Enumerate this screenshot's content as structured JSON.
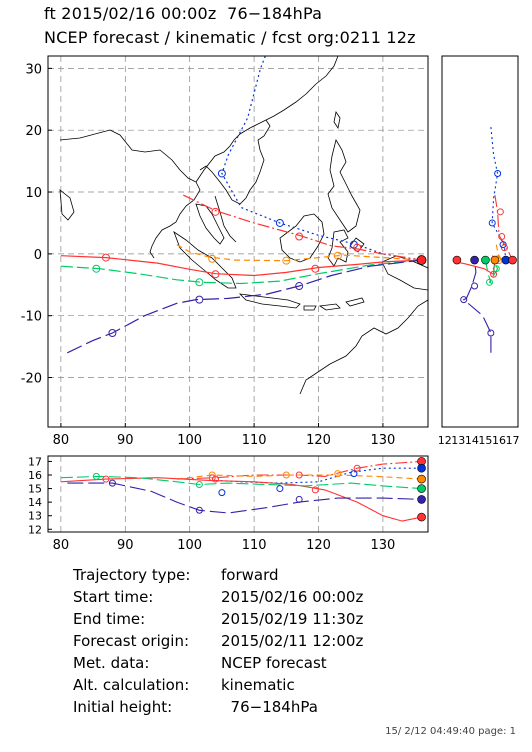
{
  "header": {
    "line1": "ft 2015/02/16 00:00z  76−184hPa",
    "line2": "NCEP forecast / kinematic / fcst org:0211 12z"
  },
  "info": [
    {
      "label": "Trajectory type:",
      "value": "forward"
    },
    {
      "label": "Start time:",
      "value": "2015/02/16 00:00z"
    },
    {
      "label": "End time:",
      "value": "2015/02/19 11:30z"
    },
    {
      "label": "Forecast origin:",
      "value": "2015/02/11 12:00z"
    },
    {
      "label": "Met. data:",
      "value": "NCEP forecast"
    },
    {
      "label": "Alt. calculation:",
      "value": "kinematic"
    },
    {
      "label": "Initial height:",
      "value": "  76−184hPa"
    }
  ],
  "footer": "15/ 2/12 04:49:40 page: 1",
  "chart_data": [
    {
      "type": "line",
      "panel": "map",
      "x_ticks": [
        "80",
        "90",
        "100",
        "110",
        "120",
        "130"
      ],
      "y_ticks": [
        "30",
        "20",
        "10",
        "0",
        "-10",
        "-20"
      ],
      "xlim": [
        78,
        137
      ],
      "ylim": [
        -28,
        32
      ],
      "grid": true,
      "series": [
        {
          "color": "#0033dd",
          "dash": "2,3",
          "points": [
            [
              114,
              38
            ],
            [
              111,
              30
            ],
            [
              109,
              22
            ],
            [
              106,
              16
            ],
            [
              105,
              13
            ],
            [
              108,
              7.5
            ],
            [
              114,
              5
            ],
            [
              120,
              3
            ],
            [
              126,
              1.5
            ],
            [
              130,
              0
            ],
            [
              136,
              -1
            ]
          ],
          "markers": [
            [
              105,
              13
            ],
            [
              114,
              5
            ],
            [
              125.5,
              1.5
            ]
          ]
        },
        {
          "color": "#ff3333",
          "dash": "12,3,2,3",
          "points": [
            [
              99,
              9.5
            ],
            [
              104,
              7
            ],
            [
              110,
              5
            ],
            [
              117,
              3
            ],
            [
              122,
              1.3
            ],
            [
              126,
              0.8
            ],
            [
              130,
              0
            ],
            [
              136,
              -1
            ]
          ],
          "markers": [
            [
              104,
              6.8
            ],
            [
              117,
              2.8
            ],
            [
              126,
              1
            ]
          ]
        },
        {
          "color": "#ff8800",
          "dash": "6,4",
          "points": [
            [
              98,
              1.5
            ],
            [
              100,
              0.3
            ],
            [
              103,
              -0.5
            ],
            [
              107,
              -1
            ],
            [
              115,
              -1.1
            ],
            [
              120,
              -0.6
            ],
            [
              124,
              -0.2
            ],
            [
              130,
              -0.6
            ],
            [
              136,
              -1
            ]
          ],
          "markers": [
            [
              103.5,
              -0.8
            ],
            [
              115,
              -1.1
            ],
            [
              123,
              -0.3
            ]
          ]
        },
        {
          "color": "#ff3333",
          "dash": "",
          "points": [
            [
              80,
              -0.3
            ],
            [
              87,
              -0.6
            ],
            [
              95,
              -1.5
            ],
            [
              100,
              -2.5
            ],
            [
              104,
              -3.2
            ],
            [
              110,
              -3.5
            ],
            [
              115,
              -3
            ],
            [
              120,
              -2.2
            ],
            [
              126,
              -1.7
            ],
            [
              130,
              -1.3
            ],
            [
              136,
              -1
            ]
          ],
          "markers": [
            [
              87,
              -0.6
            ],
            [
              104,
              -3.3
            ],
            [
              119.5,
              -2.4
            ]
          ]
        },
        {
          "color": "#00cc66",
          "dash": "12,4",
          "points": [
            [
              80,
              -2
            ],
            [
              86,
              -2.4
            ],
            [
              92,
              -3.2
            ],
            [
              98,
              -4.2
            ],
            [
              102,
              -4.6
            ],
            [
              108,
              -4.8
            ],
            [
              114,
              -4.4
            ],
            [
              120,
              -3.2
            ],
            [
              128,
              -1.8
            ],
            [
              136,
              -1
            ]
          ],
          "markers": [
            [
              85.5,
              -2.4
            ],
            [
              101.5,
              -4.6
            ]
          ]
        },
        {
          "color": "#3322aa",
          "dash": "16,5",
          "points": [
            [
              81,
              -16
            ],
            [
              85,
              -14
            ],
            [
              88,
              -12.8
            ],
            [
              93,
              -10
            ],
            [
              98,
              -8
            ],
            [
              101,
              -7.4
            ],
            [
              106,
              -7.2
            ],
            [
              112,
              -6.5
            ],
            [
              117,
              -5.2
            ],
            [
              122,
              -3.5
            ],
            [
              128,
              -2
            ],
            [
              136,
              -1
            ]
          ],
          "markers": [
            [
              88,
              -12.8
            ],
            [
              101.5,
              -7.4
            ],
            [
              117,
              -5.2
            ]
          ]
        }
      ],
      "endpoint": {
        "x": 136,
        "y": -1
      }
    },
    {
      "type": "line",
      "panel": "altitude",
      "x_ticks": [
        "80",
        "90",
        "100",
        "110",
        "120",
        "130"
      ],
      "y_ticks": [
        "17",
        "16",
        "15",
        "14",
        "13",
        "12"
      ],
      "xlim": [
        78,
        137
      ],
      "ylim": [
        11.8,
        17.4
      ],
      "grid": true,
      "series": [
        {
          "color": "#0033dd",
          "dash": "2,3",
          "points": [
            [
              104,
              15.6
            ],
            [
              108,
              15.5
            ],
            [
              114,
              15.4
            ],
            [
              120,
              15.5
            ],
            [
              125,
              16.2
            ],
            [
              130,
              16.5
            ],
            [
              136,
              16.5
            ]
          ]
        },
        {
          "color": "#ff3333",
          "dash": "12,3,2,3",
          "points": [
            [
              98,
              15.7
            ],
            [
              104,
              15.8
            ],
            [
              110,
              16.0
            ],
            [
              117,
              16.0
            ],
            [
              121,
              15.9
            ],
            [
              126,
              16.5
            ],
            [
              130,
              16.8
            ],
            [
              136,
              17.0
            ]
          ]
        },
        {
          "color": "#ff8800",
          "dash": "6,4",
          "points": [
            [
              98,
              15.7
            ],
            [
              103.5,
              16.0
            ],
            [
              110,
              15.9
            ],
            [
              116,
              16.0
            ],
            [
              123,
              16.0
            ],
            [
              129,
              15.9
            ],
            [
              136,
              15.7
            ]
          ]
        },
        {
          "color": "#ff3333",
          "dash": "",
          "points": [
            [
              80,
              15.5
            ],
            [
              87,
              15.7
            ],
            [
              95,
              15.8
            ],
            [
              103,
              15.6
            ],
            [
              110,
              15.5
            ],
            [
              116,
              15.3
            ],
            [
              121,
              14.9
            ],
            [
              126,
              14.0
            ],
            [
              130,
              13.0
            ],
            [
              133,
              12.6
            ],
            [
              136,
              12.9
            ]
          ]
        },
        {
          "color": "#00cc66",
          "dash": "12,4",
          "points": [
            [
              80,
              15.8
            ],
            [
              86,
              15.9
            ],
            [
              92,
              15.8
            ],
            [
              98,
              15.5
            ],
            [
              101.5,
              15.3
            ],
            [
              106,
              15.4
            ],
            [
              112,
              15.3
            ],
            [
              118,
              15.2
            ],
            [
              125,
              15.4
            ],
            [
              130,
              15.2
            ],
            [
              136,
              15.0
            ]
          ]
        },
        {
          "color": "#3322aa",
          "dash": "16,5",
          "points": [
            [
              81,
              15.4
            ],
            [
              88,
              15.4
            ],
            [
              94,
              14.8
            ],
            [
              98,
              14.0
            ],
            [
              101.5,
              13.4
            ],
            [
              106,
              13.2
            ],
            [
              112,
              13.6
            ],
            [
              117,
              14.0
            ],
            [
              123,
              14.3
            ],
            [
              130,
              14.3
            ],
            [
              136,
              14.2
            ]
          ]
        }
      ],
      "markers": [
        {
          "color": "#00cc66",
          "x": 85.5,
          "y": 15.9
        },
        {
          "color": "#ff3333",
          "x": 87,
          "y": 15.7
        },
        {
          "color": "#3322aa",
          "x": 88,
          "y": 15.4
        },
        {
          "color": "#00cc66",
          "x": 101.5,
          "y": 15.3
        },
        {
          "color": "#3322aa",
          "x": 101.5,
          "y": 13.4
        },
        {
          "color": "#ff3333",
          "x": 103.5,
          "y": 15.8
        },
        {
          "color": "#ff8800",
          "x": 103.5,
          "y": 16.0
        },
        {
          "color": "#ff3333",
          "x": 104,
          "y": 15.7
        },
        {
          "color": "#0033dd",
          "x": 105,
          "y": 14.7
        },
        {
          "color": "#ff8800",
          "x": 115,
          "y": 16.0
        },
        {
          "color": "#0033dd",
          "x": 114,
          "y": 15.0
        },
        {
          "color": "#ff3333",
          "x": 117,
          "y": 16.0
        },
        {
          "color": "#3322aa",
          "x": 117,
          "y": 14.2
        },
        {
          "color": "#ff3333",
          "x": 119.5,
          "y": 14.9
        },
        {
          "color": "#ff8800",
          "x": 123,
          "y": 16.1
        },
        {
          "color": "#0033dd",
          "x": 125.5,
          "y": 16.1
        },
        {
          "color": "#ff3333",
          "x": 126,
          "y": 16.5
        }
      ],
      "endpoints": [
        {
          "color": "#ff3333",
          "y": 17.0
        },
        {
          "color": "#0033dd",
          "y": 16.5
        },
        {
          "color": "#ff8800",
          "y": 15.7
        },
        {
          "color": "#00cc66",
          "y": 15.0
        },
        {
          "color": "#3322aa",
          "y": 14.2
        },
        {
          "color": "#ff3333",
          "y": 12.9
        }
      ]
    },
    {
      "type": "line",
      "panel": "side",
      "x_ticks": [
        "12",
        "13",
        "14",
        "15",
        "16",
        "17"
      ],
      "ylim": [
        -28,
        32
      ],
      "xlim": [
        11.8,
        17.4
      ],
      "series": [
        {
          "color": "#0033dd",
          "dash": "2,3",
          "points": [
            [
              15.4,
              20.5
            ],
            [
              15.6,
              16
            ],
            [
              15.9,
              13
            ],
            [
              15.6,
              9
            ],
            [
              15.5,
              5
            ],
            [
              16.0,
              3
            ],
            [
              16.4,
              1.2
            ],
            [
              16.5,
              -1
            ]
          ]
        },
        {
          "color": "#ff3333",
          "dash": "12,3,2,3",
          "points": [
            [
              15.7,
              9.5
            ],
            [
              15.9,
              6.8
            ],
            [
              16.0,
              3
            ],
            [
              16.5,
              1.2
            ],
            [
              17.0,
              -1
            ]
          ]
        },
        {
          "color": "#ff8800",
          "dash": "6,4",
          "points": [
            [
              15.8,
              1.5
            ],
            [
              16.0,
              -0.7
            ],
            [
              15.9,
              -1.1
            ],
            [
              16.0,
              -0.4
            ],
            [
              15.7,
              -1
            ]
          ]
        },
        {
          "color": "#ff3333",
          "dash": "",
          "points": [
            [
              15.5,
              -0.3
            ],
            [
              15.7,
              -0.6
            ],
            [
              15.6,
              -3.3
            ],
            [
              14.9,
              -2.4
            ],
            [
              13.5,
              -1.6
            ],
            [
              12.6,
              -1.2
            ],
            [
              12.9,
              -1
            ]
          ]
        },
        {
          "color": "#00cc66",
          "dash": "12,4",
          "points": [
            [
              15.8,
              -2
            ],
            [
              15.9,
              -2.4
            ],
            [
              15.3,
              -4.6
            ],
            [
              15.4,
              -4.7
            ],
            [
              15.2,
              -3.2
            ],
            [
              15.0,
              -1
            ]
          ]
        },
        {
          "color": "#3322aa",
          "dash": "16,5",
          "points": [
            [
              15.4,
              -16
            ],
            [
              15.4,
              -12.8
            ],
            [
              14.8,
              -10
            ],
            [
              13.4,
              -7.4
            ],
            [
              13.6,
              -7.2
            ],
            [
              14.0,
              -5.2
            ],
            [
              14.3,
              -3
            ],
            [
              14.2,
              -1
            ]
          ]
        }
      ],
      "markers": [
        {
          "color": "#0033dd",
          "x": 15.9,
          "y": 13
        },
        {
          "color": "#0033dd",
          "x": 15.5,
          "y": 5
        },
        {
          "color": "#ff3333",
          "x": 16.1,
          "y": 6.8
        },
        {
          "color": "#ff3333",
          "x": 16.2,
          "y": 2.8
        },
        {
          "color": "#ff3333",
          "x": 16.4,
          "y": 1.0
        },
        {
          "color": "#0033dd",
          "x": 16.3,
          "y": 1.5
        },
        {
          "color": "#3322aa",
          "x": 15.4,
          "y": -12.8
        },
        {
          "color": "#3322aa",
          "x": 13.4,
          "y": -7.4
        },
        {
          "color": "#00cc66",
          "x": 15.3,
          "y": -4.6
        },
        {
          "color": "#ff8800",
          "x": 15.9,
          "y": -0.8
        },
        {
          "color": "#ff3333",
          "x": 15.6,
          "y": -3.3
        },
        {
          "color": "#00cc66",
          "x": 15.8,
          "y": -2.4
        },
        {
          "color": "#ff8800",
          "x": 16.0,
          "y": -1.1
        },
        {
          "color": "#3322aa",
          "x": 14.2,
          "y": -5.2
        }
      ],
      "endpoints": [
        {
          "color": "#ff3333",
          "x": 12.9
        },
        {
          "color": "#3322aa",
          "x": 14.2
        },
        {
          "color": "#00cc66",
          "x": 15.0
        },
        {
          "color": "#ff8800",
          "x": 15.7
        },
        {
          "color": "#0033dd",
          "x": 16.5
        },
        {
          "color": "#ff3333",
          "x": 17.0
        }
      ],
      "endpoint_y": -1
    }
  ]
}
